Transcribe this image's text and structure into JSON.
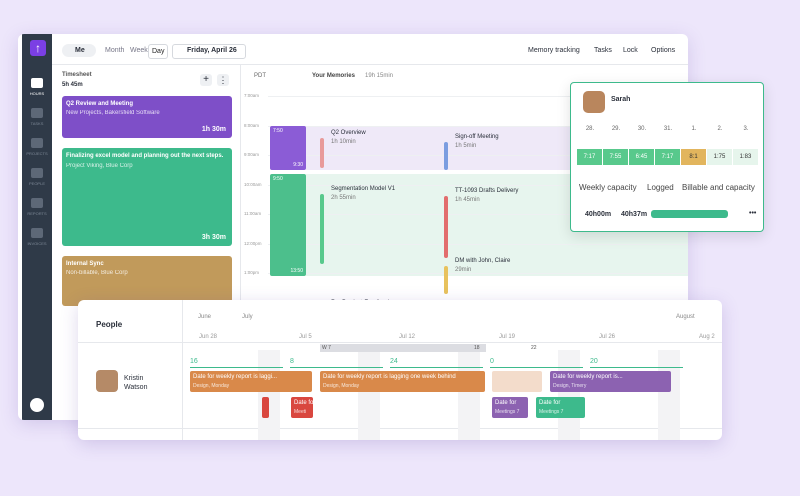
{
  "toolbar": {
    "user": "Me",
    "views": [
      "Month",
      "Week",
      "Day"
    ],
    "date": "Friday, April 26",
    "actions": [
      "Memory tracking",
      "Tasks",
      "Lock",
      "Options"
    ]
  },
  "sidebar": [
    "HOURS",
    "TASKS",
    "PROJECTS",
    "PEOPLE",
    "REPORTS",
    "INVOICES"
  ],
  "timesheet": {
    "title": "Timesheet",
    "total": "5h 45m",
    "entries": [
      {
        "title": "Q2 Review and Meeting",
        "subtitle": "New Projects, Bakersfield Software",
        "duration": "1h 30m"
      },
      {
        "title": "Finalizing excel model and planning out the next steps.",
        "subtitle": "Project Viking, Blue Corp",
        "duration": "3h 30m"
      },
      {
        "title": "Internal Sync",
        "subtitle": "Non-billable, Blue Corp"
      }
    ]
  },
  "calendar": {
    "timezone": "PDT",
    "memories_label": "Your Memories",
    "memories_total": "19h 15min",
    "hours": [
      "7:00am",
      "8:00am",
      "9:00am",
      "10:00am",
      "11:00am",
      "12:00pm",
      "1:00pm"
    ],
    "blocks": [
      {
        "start": "7:50",
        "end": "9:30"
      },
      {
        "start": "9:50",
        "end": "13:50"
      }
    ],
    "memories": [
      {
        "title": "Q2 Overview",
        "duration": "1h 10min"
      },
      {
        "title": "Sign-off Meeting",
        "duration": "1h 5min"
      },
      {
        "title": "Segmentation Model V1",
        "duration": "2h 55min"
      },
      {
        "title": "TT-1093 Drafts Delivery",
        "duration": "1h 45min"
      },
      {
        "title": "DM with John, Claire",
        "duration": "29min"
      },
      {
        "title": "Re: Product Feedback"
      }
    ]
  },
  "capacity_card": {
    "name": "Sarah",
    "dates": [
      "28.",
      "29.",
      "30.",
      "31.",
      "1.",
      "2.",
      "3."
    ],
    "values": [
      "7:17",
      "7:55",
      "6:45",
      "7:17",
      "8:1",
      "1:75",
      "1:83"
    ],
    "labels": [
      "Weekly capacity",
      "Logged",
      "Billable and capacity"
    ],
    "capacity": "40h00m",
    "logged": "40h37m",
    "more": "•••"
  },
  "people": {
    "title": "People",
    "months": [
      "June",
      "July",
      "August"
    ],
    "weeks": [
      "Jun 28",
      "Jul 5",
      "Jul 12",
      "Jul 19",
      "Jul 26",
      "Aug 2"
    ],
    "range_labels": [
      "W 7",
      "18",
      "22"
    ],
    "hours": [
      "16",
      "8",
      "24",
      "0",
      "20"
    ],
    "person": "Kristin Watson",
    "tasks": [
      {
        "title": "Date for weekly report is laggi...",
        "subtitle": "Design, Monday"
      },
      {
        "title": "Date for weekly report is lagging one week behind",
        "subtitle": "Design, Monday"
      },
      {
        "title": "Date for weekly report is...",
        "subtitle": "Design, Timery"
      },
      {
        "title": "Date for",
        "subtitle": "Meeti"
      },
      {
        "title": "Date for",
        "subtitle": "Meetings 7"
      },
      {
        "title": "Date for",
        "subtitle": "Meetings 7"
      }
    ]
  }
}
